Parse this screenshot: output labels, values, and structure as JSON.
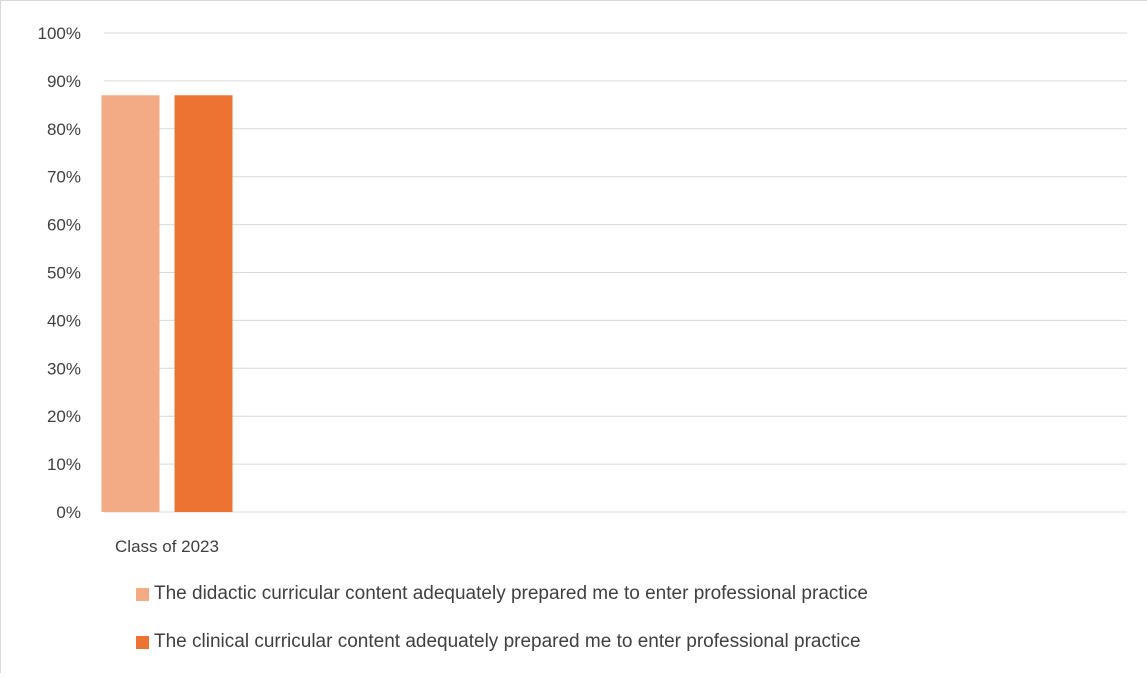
{
  "chart_data": {
    "type": "bar",
    "title": "",
    "xlabel": "",
    "ylabel": "",
    "categories": [
      "Class of 2023"
    ],
    "series": [
      {
        "name": "The didactic curricular content adequately prepared me to enter professional practice",
        "values": [
          87
        ],
        "color": "#F2AB85"
      },
      {
        "name": "The clinical curricular content adequately prepared me to enter professional practice",
        "values": [
          87
        ],
        "color": "#EC7332"
      }
    ],
    "ylim": [
      0,
      100
    ],
    "yticks": [
      "0%",
      "10%",
      "20%",
      "30%",
      "40%",
      "50%",
      "60%",
      "70%",
      "80%",
      "90%",
      "100%"
    ],
    "grid": true,
    "legend_position": "bottom"
  }
}
